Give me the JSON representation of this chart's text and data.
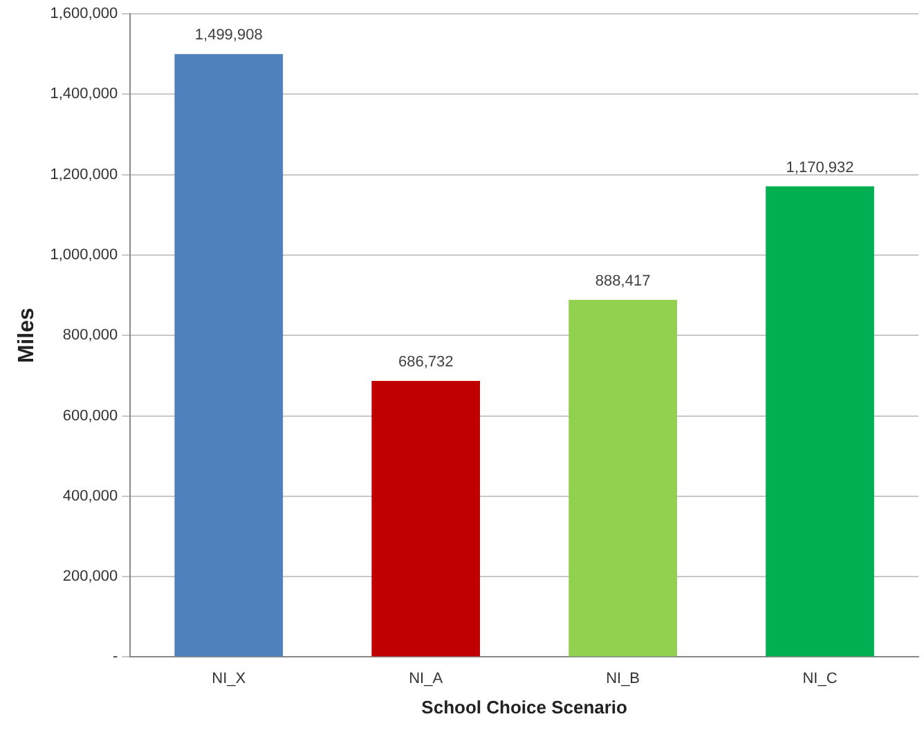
{
  "chart_data": {
    "type": "bar",
    "xlabel": "School Choice Scenario",
    "ylabel": "Miles",
    "categories": [
      "NI_X",
      "NI_A",
      "NI_B",
      "NI_C"
    ],
    "values": [
      1499908,
      686732,
      888417,
      1170932
    ],
    "colors": [
      "#4f81bd",
      "#c00000",
      "#92d050",
      "#00b050"
    ],
    "ylim": [
      0,
      1600000
    ],
    "yticks": [
      {
        "value": 0,
        "label": "-"
      },
      {
        "value": 200000,
        "label": "200,000"
      },
      {
        "value": 400000,
        "label": "400,000"
      },
      {
        "value": 600000,
        "label": "600,000"
      },
      {
        "value": 800000,
        "label": "800,000"
      },
      {
        "value": 1000000,
        "label": "1,000,000"
      },
      {
        "value": 1200000,
        "label": "1,200,000"
      },
      {
        "value": 1400000,
        "label": "1,400,000"
      },
      {
        "value": 1600000,
        "label": "1,600,000"
      }
    ],
    "value_labels": [
      "1,499,908",
      "686,732",
      "888,417",
      "1,170,932"
    ],
    "grid": "y",
    "legend": false
  }
}
